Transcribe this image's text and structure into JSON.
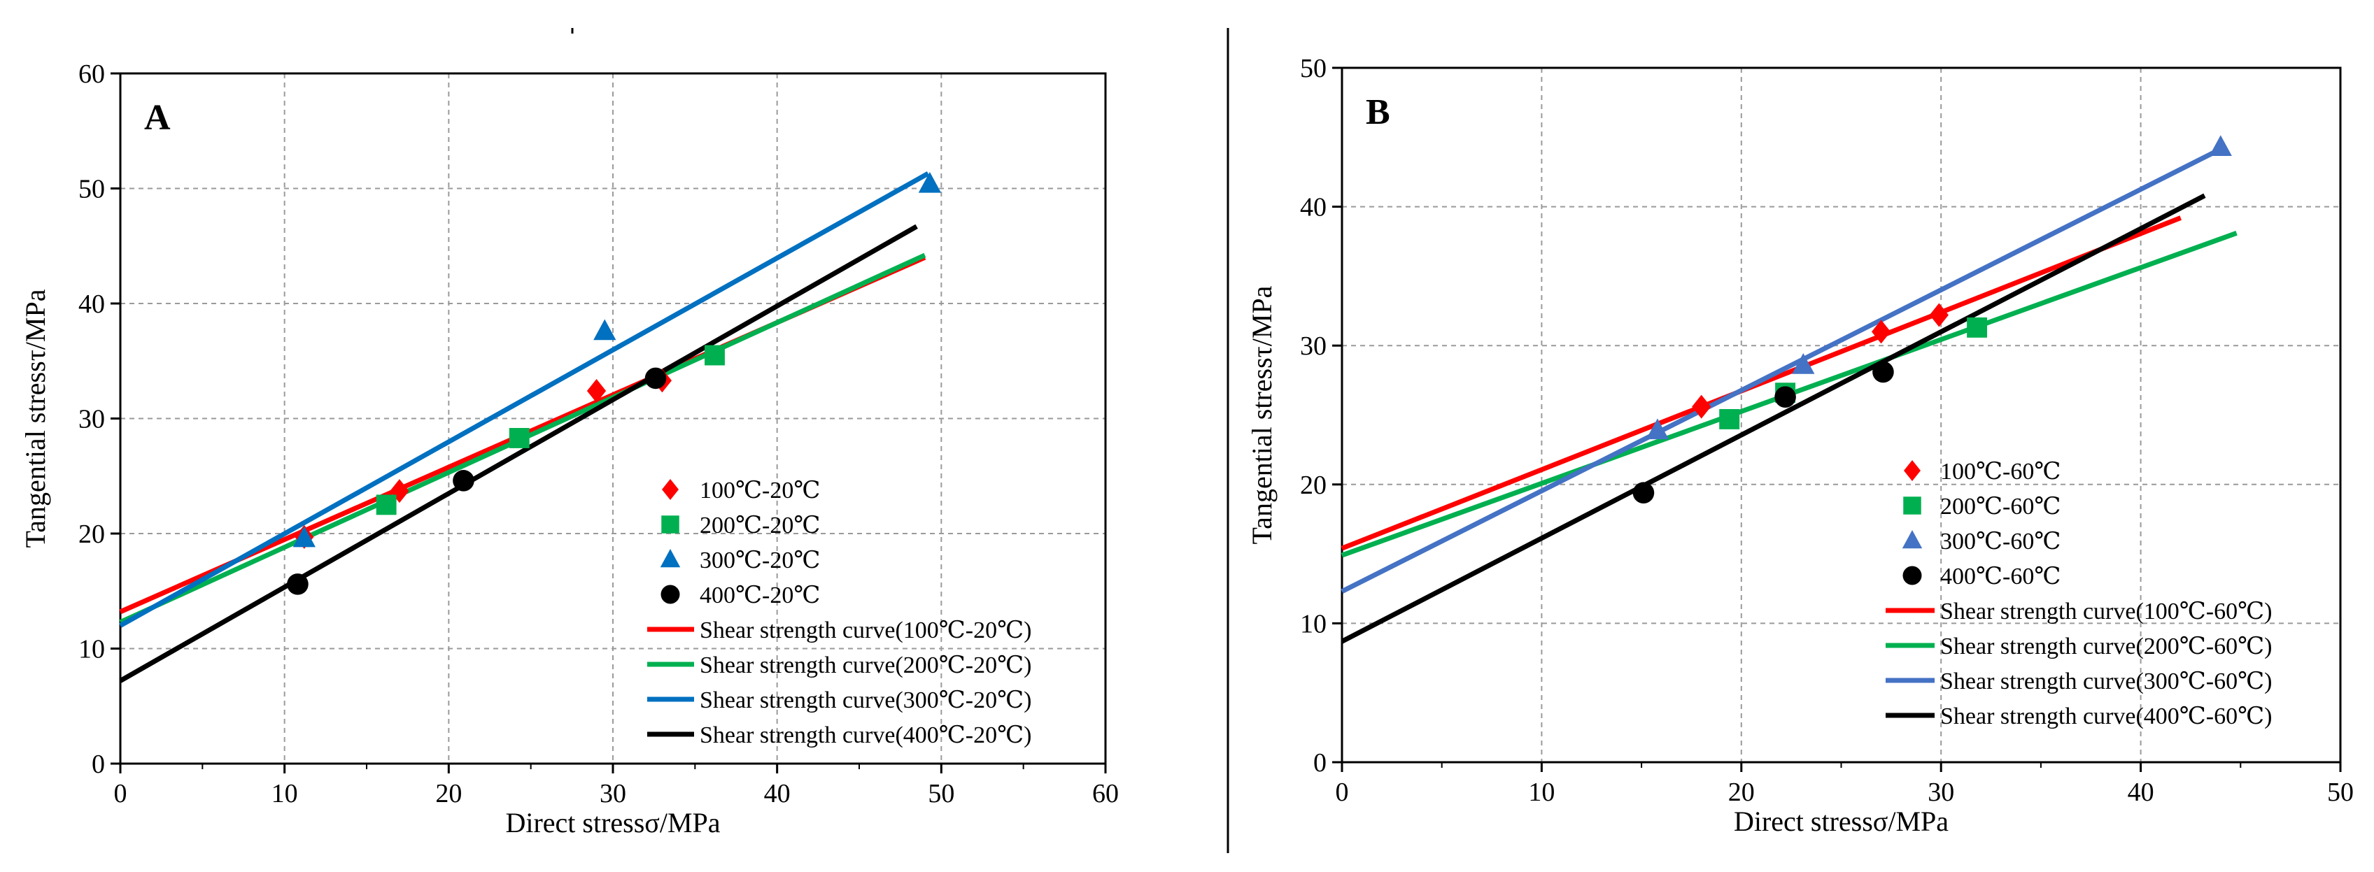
{
  "chart_data": [
    {
      "type": "scatter",
      "panel_label": "A",
      "xlabel": "Direct stressσ/MPa",
      "ylabel": "Tangential stressτ/MPa",
      "xlim": [
        0,
        60
      ],
      "ylim": [
        0,
        60
      ],
      "x_ticks": [
        "0",
        "10",
        "20",
        "30",
        "40",
        "50",
        "60"
      ],
      "y_ticks": [
        "0",
        "10",
        "20",
        "30",
        "40",
        "50",
        "60"
      ],
      "grid": true,
      "legend_position": "bottom-right",
      "series": [
        {
          "name": "100℃-20℃",
          "kind": "points",
          "marker": "diamond",
          "color": "#ff0000",
          "points": [
            [
              11.2,
              19.7
            ],
            [
              17.0,
              23.7
            ],
            [
              29.0,
              32.4
            ],
            [
              33.0,
              33.3
            ]
          ]
        },
        {
          "name": "200℃-20℃",
          "kind": "points",
          "marker": "square",
          "color": "#00b050",
          "points": [
            [
              16.2,
              22.5
            ],
            [
              24.3,
              28.3
            ],
            [
              36.2,
              35.5
            ]
          ]
        },
        {
          "name": "300℃-20℃",
          "kind": "points",
          "marker": "triangle",
          "color": "#0070c0",
          "points": [
            [
              11.2,
              19.6
            ],
            [
              29.5,
              37.6
            ],
            [
              49.3,
              50.4
            ]
          ]
        },
        {
          "name": "400℃-20℃",
          "kind": "points",
          "marker": "circle",
          "color": "#000000",
          "points": [
            [
              10.8,
              15.6
            ],
            [
              20.9,
              24.6
            ],
            [
              32.6,
              33.5
            ]
          ]
        },
        {
          "name": "Shear strength curve(100℃-20℃)",
          "kind": "line",
          "color": "#ff0000",
          "points": [
            [
              0,
              13.2
            ],
            [
              49.0,
              44.0
            ]
          ]
        },
        {
          "name": "Shear strength curve(200℃-20℃)",
          "kind": "line",
          "color": "#00b050",
          "points": [
            [
              0,
              12.3
            ],
            [
              49.0,
              44.2
            ]
          ]
        },
        {
          "name": "Shear strength curve(300℃-20℃)",
          "kind": "line",
          "color": "#0070c0",
          "points": [
            [
              0,
              12.0
            ],
            [
              49.2,
              51.3
            ]
          ]
        },
        {
          "name": "Shear strength curve(400℃-20℃)",
          "kind": "line",
          "color": "#000000",
          "points": [
            [
              0,
              7.2
            ],
            [
              48.5,
              46.7
            ]
          ]
        }
      ]
    },
    {
      "type": "scatter",
      "panel_label": "B",
      "xlabel": "Direct stressσ/MPa",
      "ylabel": "Tangential stressτ/MPa",
      "xlim": [
        0,
        50
      ],
      "ylim": [
        0,
        50
      ],
      "x_ticks": [
        "0",
        "10",
        "20",
        "30",
        "40",
        "50"
      ],
      "y_ticks": [
        "0",
        "10",
        "20",
        "30",
        "40",
        "50"
      ],
      "grid": true,
      "legend_position": "bottom-right",
      "series": [
        {
          "name": "100℃-60℃",
          "kind": "points",
          "marker": "diamond",
          "color": "#ff0000",
          "points": [
            [
              18.0,
              25.6
            ],
            [
              27.0,
              31.0
            ],
            [
              29.9,
              32.2
            ]
          ]
        },
        {
          "name": "200℃-60℃",
          "kind": "points",
          "marker": "square",
          "color": "#00b050",
          "points": [
            [
              19.4,
              24.7
            ],
            [
              22.2,
              26.6
            ],
            [
              31.8,
              31.3
            ]
          ]
        },
        {
          "name": "300℃-60℃",
          "kind": "points",
          "marker": "triangle",
          "color": "#4472c4",
          "points": [
            [
              15.8,
              23.9
            ],
            [
              23.1,
              28.6
            ],
            [
              44.0,
              44.3
            ]
          ]
        },
        {
          "name": "400℃-60℃",
          "kind": "points",
          "marker": "circle",
          "color": "#000000",
          "points": [
            [
              15.1,
              19.4
            ],
            [
              22.2,
              26.3
            ],
            [
              27.1,
              28.1
            ]
          ]
        },
        {
          "name": "Shear strength curve(100℃-60℃)",
          "kind": "line",
          "color": "#ff0000",
          "points": [
            [
              0,
              15.4
            ],
            [
              42.0,
              39.2
            ]
          ]
        },
        {
          "name": "Shear strength curve(200℃-60℃)",
          "kind": "line",
          "color": "#00b050",
          "points": [
            [
              0,
              14.9
            ],
            [
              44.8,
              38.1
            ]
          ]
        },
        {
          "name": "Shear strength curve(300℃-60℃)",
          "kind": "line",
          "color": "#4472c4",
          "points": [
            [
              0,
              12.3
            ],
            [
              43.8,
              44.0
            ]
          ]
        },
        {
          "name": "Shear strength curve(400℃-60℃)",
          "kind": "line",
          "color": "#000000",
          "points": [
            [
              0,
              8.7
            ],
            [
              43.2,
              40.8
            ]
          ]
        }
      ]
    }
  ]
}
